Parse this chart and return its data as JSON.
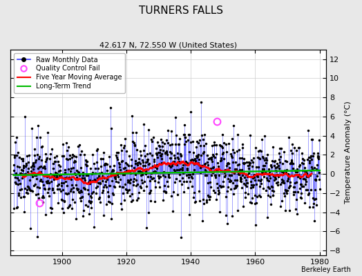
{
  "title": "TURNERS FALLS",
  "subtitle": "42.617 N, 72.550 W (United States)",
  "ylabel": "Temperature Anomaly (°C)",
  "credit": "Berkeley Earth",
  "xlim": [
    1884,
    1982
  ],
  "ylim": [
    -8.5,
    13.0
  ],
  "yticks": [
    -8,
    -6,
    -4,
    -2,
    0,
    2,
    4,
    6,
    8,
    10,
    12
  ],
  "xticks": [
    1900,
    1920,
    1940,
    1960,
    1980
  ],
  "x_start": 1885,
  "x_end": 1980,
  "num_months": 1140,
  "seed": 17,
  "raw_color": "#3333ff",
  "dot_color": "#000000",
  "ma_color": "#ff0000",
  "trend_color": "#00bb00",
  "qc_color": "#ff44ff",
  "background_color": "#e8e8e8",
  "plot_bg": "#ffffff",
  "figwidth": 5.24,
  "figheight": 4.0,
  "dpi": 100
}
